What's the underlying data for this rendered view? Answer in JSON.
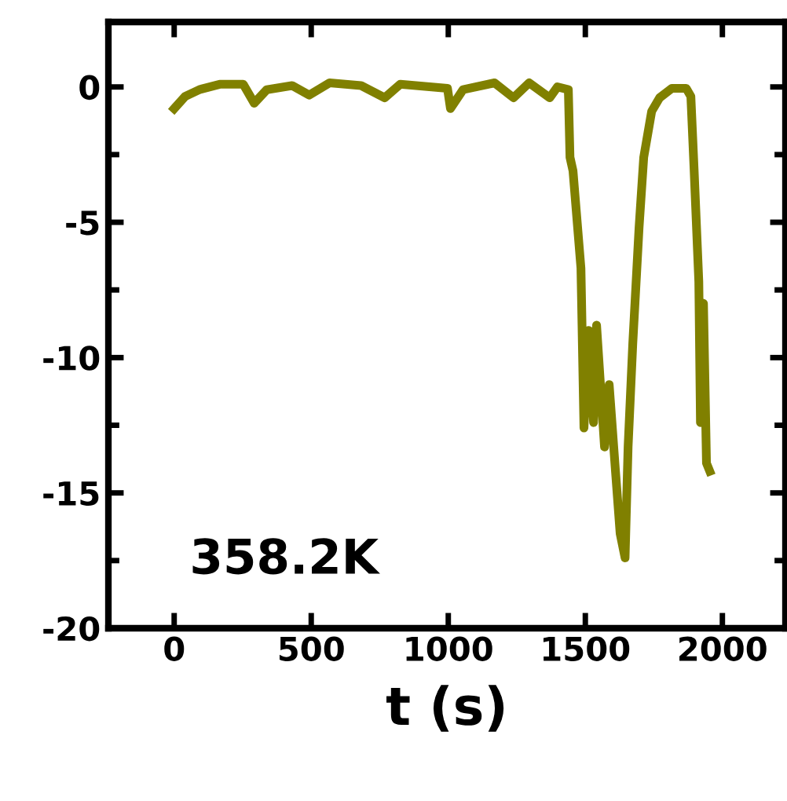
{
  "chart_data": {
    "type": "line",
    "xlabel": "t (s)",
    "annotations": [
      "358.2K"
    ],
    "xlim": [
      -240,
      2230
    ],
    "ylim": [
      -20,
      2.4
    ],
    "xticks": [
      0,
      500,
      1000,
      1500,
      2000
    ],
    "yticks": [
      0,
      -5,
      -10,
      -15,
      -20
    ],
    "grid": false,
    "line_style": "solid",
    "marker": "none",
    "series": [
      {
        "color": "#808000",
        "x": [
          0,
          40,
          92,
          166,
          252,
          292,
          338,
          430,
          493,
          567,
          682,
          768,
          825,
          997,
          1008,
          1054,
          1169,
          1238,
          1295,
          1370,
          1398,
          1438,
          1444,
          1455,
          1484,
          1495,
          1512,
          1530,
          1541,
          1570,
          1587,
          1610,
          1627,
          1645,
          1656,
          1673,
          1696,
          1713,
          1742,
          1771,
          1816,
          1868,
          1885,
          1897,
          1914,
          1920,
          1931,
          1942,
          1954
        ],
        "values": [
          -0.8,
          -0.35,
          -0.1,
          0.1,
          0.1,
          -0.6,
          -0.1,
          0.05,
          -0.3,
          0.15,
          0.05,
          -0.4,
          0.1,
          -0.05,
          -0.8,
          -0.1,
          0.15,
          -0.4,
          0.15,
          -0.4,
          0,
          -0.1,
          -2.6,
          -3.1,
          -6.7,
          -12.6,
          -9,
          -12.4,
          -8.8,
          -13.3,
          -11,
          -14.2,
          -16.5,
          -17.4,
          -13.3,
          -9.5,
          -5.2,
          -2.6,
          -0.9,
          -0.4,
          -0.05,
          -0.05,
          -0.35,
          -3.1,
          -7.2,
          -12.4,
          -8,
          -13.9,
          -14.2
        ]
      }
    ]
  }
}
